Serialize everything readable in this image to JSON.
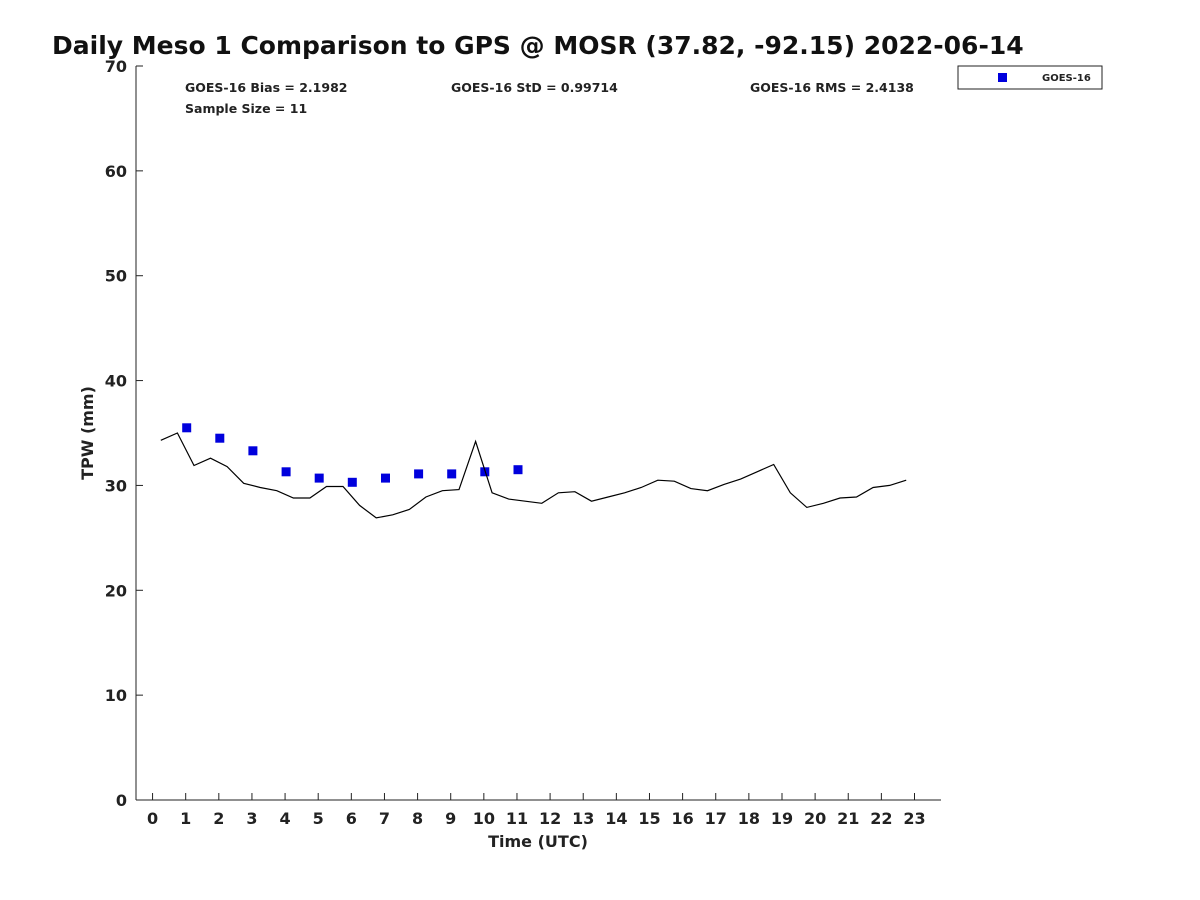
{
  "chart_data": {
    "type": "scatter",
    "title": "Daily Meso 1 Comparison to GPS @ MOSR (37.82, -92.15) 2022-06-14",
    "xlabel": "Time (UTC)",
    "ylabel": "TPW (mm)",
    "xlim": [
      -0.5,
      23.8
    ],
    "ylim": [
      0,
      70
    ],
    "xticks": [
      "0",
      "1",
      "2",
      "3",
      "4",
      "5",
      "6",
      "7",
      "8",
      "9",
      "10",
      "11",
      "12",
      "13",
      "14",
      "15",
      "16",
      "17",
      "18",
      "19",
      "20",
      "21",
      "22",
      "23"
    ],
    "yticks": [
      "0",
      "10",
      "20",
      "30",
      "40",
      "50",
      "60",
      "70"
    ],
    "grid": false,
    "legend": {
      "position": "top-right",
      "entries": [
        "GOES-16"
      ]
    },
    "stats": {
      "bias": "GOES-16 Bias = 2.1982",
      "std": "GOES-16 StD = 0.99714",
      "rms": "GOES-16 RMS = 2.4138",
      "sample": "Sample Size = 11"
    },
    "series": [
      {
        "name": "GOES-16",
        "marker": "square",
        "color": "#0000dd",
        "x": [
          1.03,
          2.03,
          3.03,
          4.03,
          5.03,
          6.03,
          7.03,
          8.03,
          9.03,
          10.03,
          11.03
        ],
        "y": [
          35.5,
          34.5,
          33.3,
          31.3,
          30.7,
          30.3,
          30.7,
          31.1,
          31.1,
          31.3,
          31.5
        ]
      },
      {
        "marker": "line",
        "color": "#000000",
        "x": [
          0.25,
          0.75,
          1.25,
          1.75,
          2.25,
          2.75,
          3.25,
          3.75,
          4.25,
          4.75,
          5.25,
          5.75,
          6.25,
          6.75,
          7.25,
          7.75,
          8.25,
          8.75,
          9.25,
          9.75,
          10.25,
          10.75,
          11.25,
          11.75,
          12.25,
          12.75,
          13.25,
          13.75,
          14.25,
          14.75,
          15.25,
          15.75,
          16.25,
          16.75,
          17.25,
          17.75,
          18.25,
          18.75,
          19.25,
          19.75,
          20.25,
          20.75,
          21.25,
          21.75,
          22.25,
          22.75
        ],
        "y": [
          34.3,
          35.0,
          31.9,
          32.6,
          31.8,
          30.2,
          29.8,
          29.5,
          28.8,
          28.8,
          29.9,
          29.9,
          28.1,
          26.9,
          27.2,
          27.7,
          28.9,
          29.5,
          29.6,
          34.2,
          29.3,
          28.7,
          28.5,
          28.3,
          29.3,
          29.4,
          28.5,
          28.9,
          29.3,
          29.8,
          30.5,
          30.4,
          29.7,
          29.5,
          30.1,
          30.6,
          31.3,
          32.0,
          29.3,
          27.9,
          28.3,
          28.8,
          28.9,
          29.8,
          30.0,
          30.5
        ]
      }
    ]
  }
}
